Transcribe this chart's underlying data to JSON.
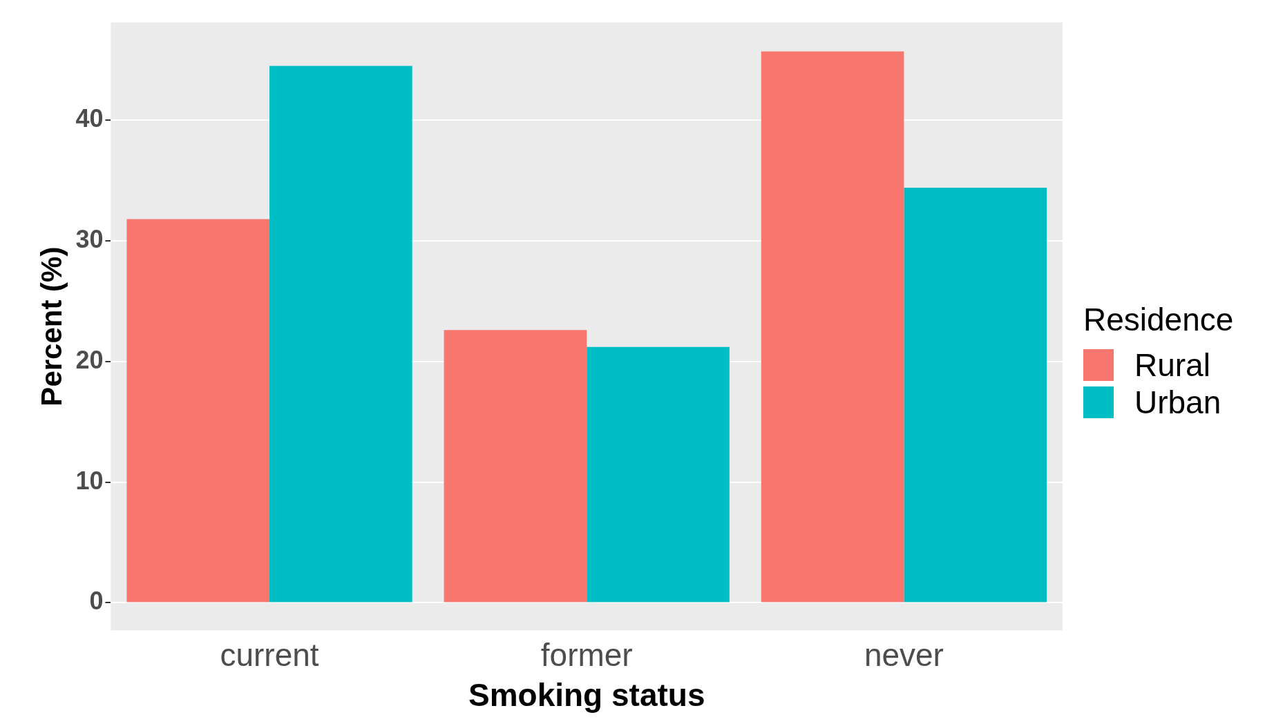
{
  "chart_data": {
    "type": "bar",
    "xlabel": "Smoking status",
    "ylabel": "Percent (%)",
    "legend_title": "Residence",
    "categories": [
      "current",
      "former",
      "never"
    ],
    "series": [
      {
        "name": "Rural",
        "color": "#f8766d",
        "values": [
          31.8,
          22.6,
          45.7
        ]
      },
      {
        "name": "Urban",
        "color": "#00bfc4",
        "values": [
          44.5,
          21.2,
          34.4
        ]
      }
    ],
    "ylim": [
      -2.3,
      48.1
    ],
    "yticks": [
      0,
      10,
      20,
      30,
      40
    ],
    "grid": "y",
    "legend": "right"
  }
}
